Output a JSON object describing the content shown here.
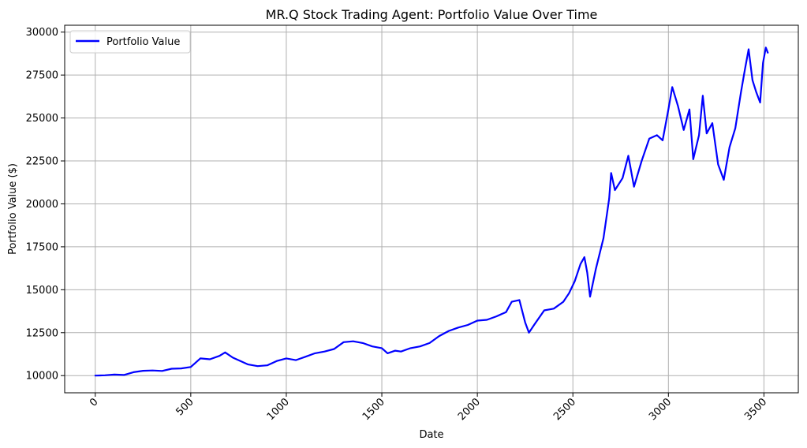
{
  "chart_data": {
    "type": "line",
    "title": "MR.Q Stock Trading Agent: Portfolio Value Over Time",
    "xlabel": "Date",
    "ylabel": "Portfolio Value ($)",
    "xlim": [
      -160,
      3680
    ],
    "ylim": [
      9000,
      30400
    ],
    "xticks": [
      0,
      500,
      1000,
      1500,
      2000,
      2500,
      3000,
      3500
    ],
    "yticks": [
      10000,
      12500,
      15000,
      17500,
      20000,
      22500,
      25000,
      27500,
      30000
    ],
    "xtick_rotation": -45,
    "grid": true,
    "legend_position": "top-left",
    "series": [
      {
        "name": "Portfolio Value",
        "color": "#0000ff",
        "points": [
          [
            0,
            10000
          ],
          [
            50,
            10020
          ],
          [
            100,
            10060
          ],
          [
            150,
            10040
          ],
          [
            200,
            10200
          ],
          [
            250,
            10280
          ],
          [
            300,
            10300
          ],
          [
            350,
            10270
          ],
          [
            400,
            10400
          ],
          [
            450,
            10420
          ],
          [
            500,
            10500
          ],
          [
            550,
            11000
          ],
          [
            600,
            10950
          ],
          [
            650,
            11150
          ],
          [
            680,
            11350
          ],
          [
            720,
            11050
          ],
          [
            760,
            10850
          ],
          [
            800,
            10650
          ],
          [
            850,
            10550
          ],
          [
            900,
            10600
          ],
          [
            950,
            10850
          ],
          [
            1000,
            11000
          ],
          [
            1050,
            10900
          ],
          [
            1100,
            11100
          ],
          [
            1150,
            11300
          ],
          [
            1200,
            11400
          ],
          [
            1250,
            11550
          ],
          [
            1300,
            11950
          ],
          [
            1350,
            12000
          ],
          [
            1400,
            11900
          ],
          [
            1450,
            11700
          ],
          [
            1500,
            11600
          ],
          [
            1530,
            11300
          ],
          [
            1570,
            11450
          ],
          [
            1600,
            11400
          ],
          [
            1650,
            11600
          ],
          [
            1700,
            11700
          ],
          [
            1750,
            11900
          ],
          [
            1800,
            12300
          ],
          [
            1850,
            12600
          ],
          [
            1900,
            12800
          ],
          [
            1950,
            12950
          ],
          [
            2000,
            13200
          ],
          [
            2050,
            13250
          ],
          [
            2100,
            13450
          ],
          [
            2150,
            13700
          ],
          [
            2180,
            14300
          ],
          [
            2220,
            14400
          ],
          [
            2250,
            13100
          ],
          [
            2270,
            12500
          ],
          [
            2300,
            13000
          ],
          [
            2350,
            13800
          ],
          [
            2400,
            13900
          ],
          [
            2450,
            14300
          ],
          [
            2480,
            14800
          ],
          [
            2510,
            15500
          ],
          [
            2540,
            16500
          ],
          [
            2560,
            16900
          ],
          [
            2575,
            16000
          ],
          [
            2590,
            14600
          ],
          [
            2620,
            16200
          ],
          [
            2660,
            18000
          ],
          [
            2690,
            20300
          ],
          [
            2700,
            21800
          ],
          [
            2720,
            20800
          ],
          [
            2760,
            21500
          ],
          [
            2790,
            22800
          ],
          [
            2820,
            21000
          ],
          [
            2860,
            22500
          ],
          [
            2900,
            23800
          ],
          [
            2940,
            24000
          ],
          [
            2970,
            23700
          ],
          [
            3000,
            25500
          ],
          [
            3020,
            26800
          ],
          [
            3050,
            25700
          ],
          [
            3080,
            24300
          ],
          [
            3110,
            25500
          ],
          [
            3130,
            22600
          ],
          [
            3160,
            24000
          ],
          [
            3180,
            26300
          ],
          [
            3200,
            24100
          ],
          [
            3230,
            24700
          ],
          [
            3260,
            22300
          ],
          [
            3290,
            21400
          ],
          [
            3320,
            23300
          ],
          [
            3350,
            24400
          ],
          [
            3380,
            26500
          ],
          [
            3400,
            27800
          ],
          [
            3420,
            29000
          ],
          [
            3440,
            27200
          ],
          [
            3460,
            26500
          ],
          [
            3480,
            25900
          ],
          [
            3495,
            28200
          ],
          [
            3510,
            29100
          ],
          [
            3520,
            28800
          ]
        ]
      }
    ]
  }
}
